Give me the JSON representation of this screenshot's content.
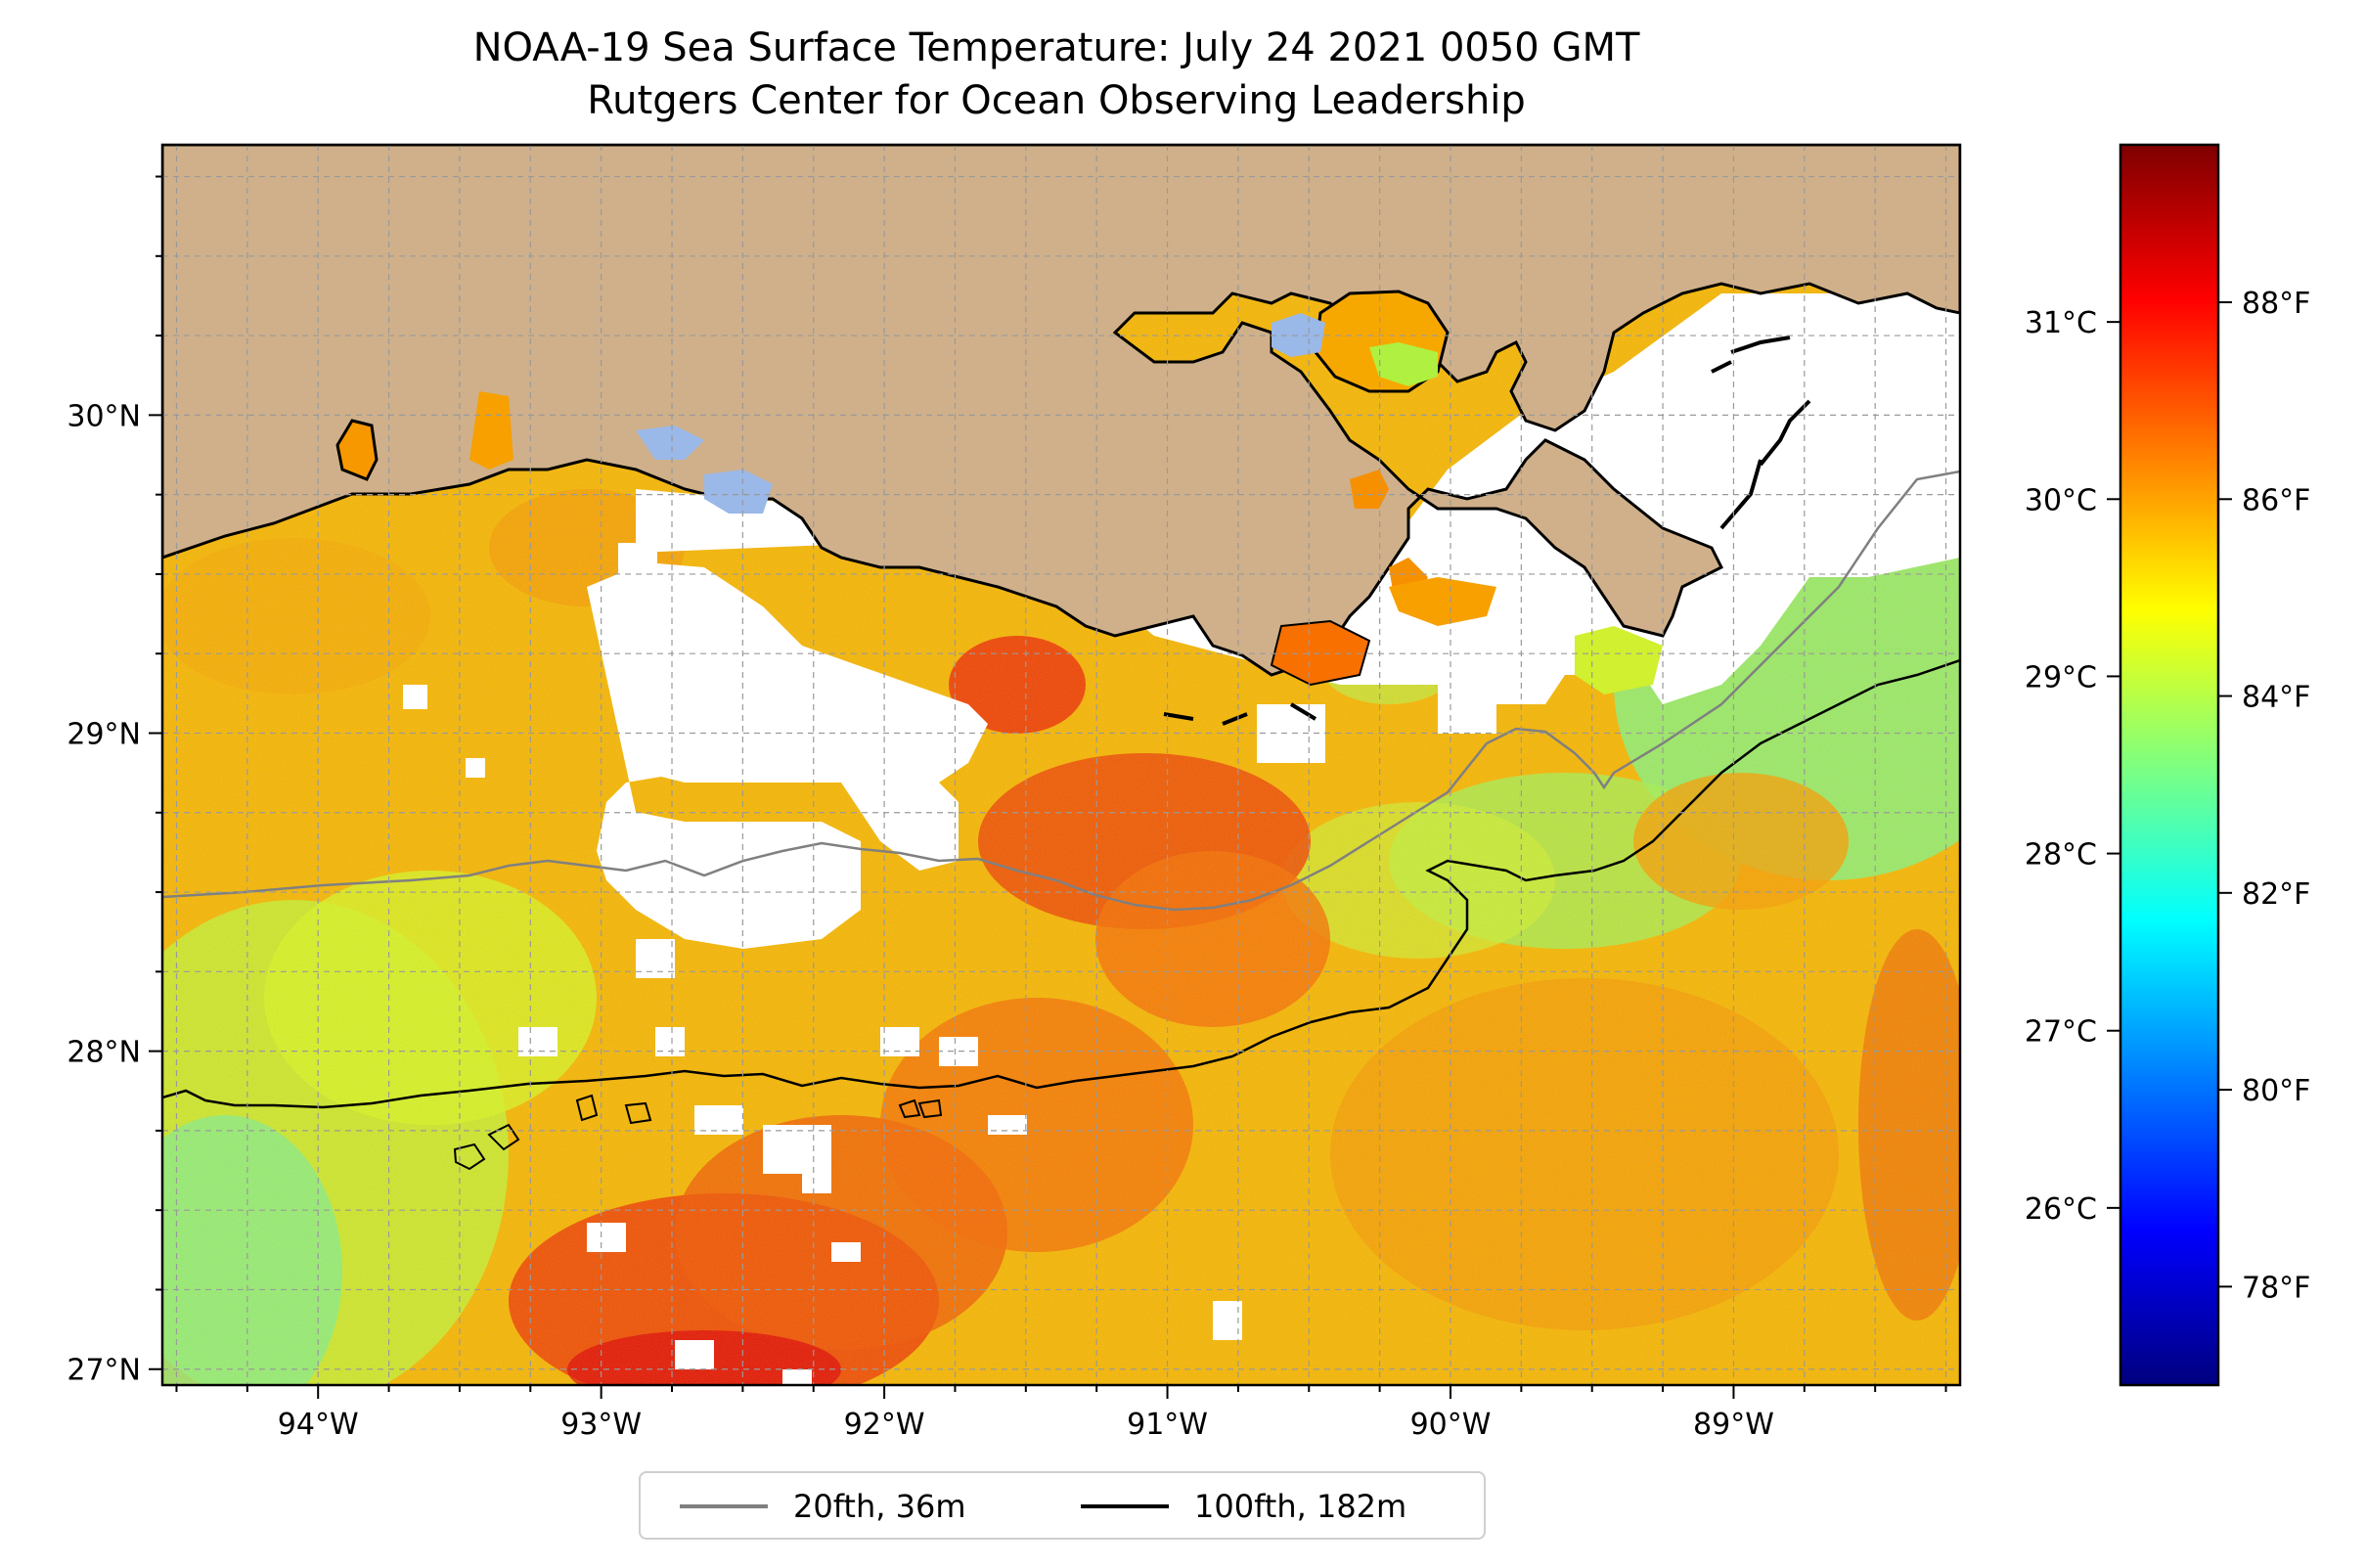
{
  "title": {
    "line1": "NOAA-19 Sea Surface Temperature: July 24 2021 0050 GMT",
    "line2": "Rutgers Center for Ocean Observing Leadership"
  },
  "map": {
    "lon_range": [
      -94.55,
      -88.2
    ],
    "lat_range": [
      26.95,
      30.85
    ],
    "x_ticks": [
      {
        "value": -94,
        "label": "94°W"
      },
      {
        "value": -93,
        "label": "93°W"
      },
      {
        "value": -92,
        "label": "92°W"
      },
      {
        "value": -91,
        "label": "91°W"
      },
      {
        "value": -90,
        "label": "90°W"
      },
      {
        "value": -89,
        "label": "89°W"
      }
    ],
    "y_ticks": [
      {
        "value": 27,
        "label": "27°N"
      },
      {
        "value": 28,
        "label": "28°N"
      },
      {
        "value": 29,
        "label": "29°N"
      },
      {
        "value": 30,
        "label": "30°N"
      }
    ],
    "grid": true,
    "land_color": "#CFB08A",
    "inland_water_color": "#9AB8E8",
    "cloud_mask_color": "#FFFFFF"
  },
  "colorbar": {
    "colormap": "jet",
    "celsius_ticks": [
      {
        "value": 26,
        "label": "26°C"
      },
      {
        "value": 27,
        "label": "27°C"
      },
      {
        "value": 28,
        "label": "28°C"
      },
      {
        "value": 29,
        "label": "29°C"
      },
      {
        "value": 30,
        "label": "30°C"
      },
      {
        "value": 31,
        "label": "31°C"
      }
    ],
    "fahrenheit_ticks": [
      {
        "value": 78,
        "label": "78°F"
      },
      {
        "value": 80,
        "label": "80°F"
      },
      {
        "value": 82,
        "label": "82°F"
      },
      {
        "value": 84,
        "label": "84°F"
      },
      {
        "value": 86,
        "label": "86°F"
      },
      {
        "value": 88,
        "label": "88°F"
      }
    ],
    "range_f": [
      77,
      89.6
    ],
    "colors": [
      "#00007F",
      "#0000FF",
      "#007FFF",
      "#00FFFF",
      "#7FFF7F",
      "#FFFF00",
      "#FF7F00",
      "#FF0000",
      "#7F0000"
    ]
  },
  "legend": {
    "placement": "bottom-center",
    "items": [
      {
        "label": "20fth, 36m",
        "color": "#808080"
      },
      {
        "label": "100fth, 182m",
        "color": "#000000"
      }
    ]
  }
}
